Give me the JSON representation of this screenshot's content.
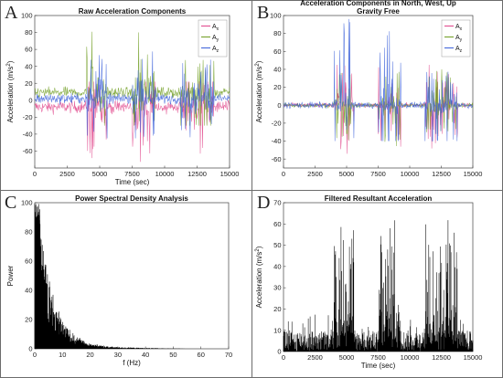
{
  "panels": [
    {
      "letter": "A",
      "chart_data": {
        "type": "line",
        "title": "Raw Acceleration Components",
        "subtitle": "",
        "xlabel": "Time (sec)",
        "ylabel": "Acceleration (m/s²)",
        "xlim": [
          0,
          15000
        ],
        "ylim": [
          -80,
          100
        ],
        "xticks": [
          0,
          2500,
          5000,
          7500,
          10000,
          12500,
          15000
        ],
        "yticks": [
          -60,
          -40,
          -20,
          0,
          20,
          40,
          60,
          80,
          100
        ],
        "grid": false,
        "legend_position": "top-right",
        "series": [
          {
            "name": "Ax",
            "color": "#e0448a",
            "baseline": -8,
            "amplitude": 12,
            "y_range": [
              -78,
              22
            ]
          },
          {
            "name": "Ay",
            "color": "#6e9c20",
            "baseline": 9,
            "amplitude": 10,
            "y_range": [
              -30,
              88
            ]
          },
          {
            "name": "Az",
            "color": "#3a5fd9",
            "baseline": 2,
            "amplitude": 10,
            "y_range": [
              -45,
              58
            ]
          }
        ],
        "activity_intervals": [
          [
            4000,
            5600
          ],
          [
            7500,
            9300
          ],
          [
            11200,
            13800
          ]
        ]
      }
    },
    {
      "letter": "B",
      "chart_data": {
        "type": "line",
        "title": "Acceleration Components in North, West, Up",
        "subtitle": "Gravity Free",
        "xlabel": "",
        "ylabel": "Acceleration (m/s²)",
        "xlim": [
          0,
          15000
        ],
        "ylim": [
          -70,
          100
        ],
        "xticks": [
          0,
          2500,
          5000,
          7500,
          10000,
          12500,
          15000
        ],
        "yticks": [
          -60,
          -40,
          -20,
          0,
          20,
          40,
          60,
          80,
          100
        ],
        "grid": false,
        "legend_position": "top-right",
        "series": [
          {
            "name": "Ax",
            "color": "#e0448a",
            "baseline": 0,
            "amplitude": 4,
            "y_range": [
              -55,
              45
            ]
          },
          {
            "name": "Ay",
            "color": "#6e9c20",
            "baseline": 0,
            "amplitude": 4,
            "y_range": [
              -48,
              40
            ]
          },
          {
            "name": "Az",
            "color": "#3a5fd9",
            "baseline": 0,
            "amplitude": 6,
            "y_range": [
              -40,
              100
            ]
          }
        ],
        "activity_intervals": [
          [
            4000,
            5600
          ],
          [
            7500,
            9300
          ],
          [
            11200,
            13800
          ]
        ]
      }
    },
    {
      "letter": "C",
      "chart_data": {
        "type": "line",
        "title": "Power Spectral Density Analysis",
        "xlabel": "f (Hz)",
        "ylabel": "Power",
        "xlim": [
          0,
          70
        ],
        "ylim": [
          0,
          100
        ],
        "xticks": [
          0,
          10,
          20,
          30,
          40,
          50,
          60,
          70
        ],
        "yticks": [
          0,
          20,
          40,
          60,
          80,
          100
        ],
        "grid": false,
        "series": [
          {
            "name": "",
            "color": "#000000",
            "peak_power": 100,
            "decay_scale_hz": 5.5,
            "noise_floor": 2
          }
        ]
      }
    },
    {
      "letter": "D",
      "chart_data": {
        "type": "line",
        "title": "Filtered Resultant Acceleration",
        "xlabel": "Time (sec)",
        "ylabel": "Acceleration (m/s²)",
        "xlim": [
          0,
          15000
        ],
        "ylim": [
          0,
          70
        ],
        "xticks": [
          0,
          2500,
          5000,
          7500,
          10000,
          12500,
          15000
        ],
        "yticks": [
          0,
          10,
          20,
          30,
          40,
          50,
          60,
          70
        ],
        "grid": false,
        "series": [
          {
            "name": "",
            "color": "#000000",
            "baseline_max": 10,
            "y_max": 62
          }
        ],
        "activity_intervals": [
          [
            4000,
            5600
          ],
          [
            7500,
            9300
          ],
          [
            11200,
            13800
          ]
        ]
      }
    }
  ]
}
